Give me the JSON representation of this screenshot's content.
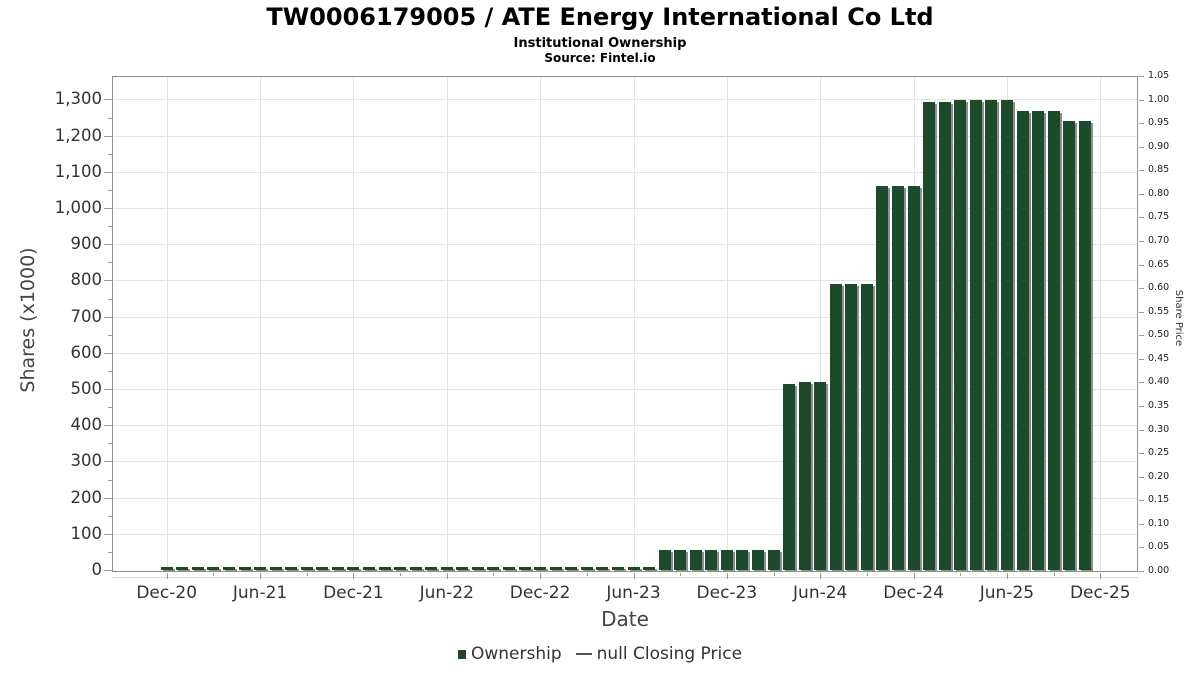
{
  "title": "TW0006179005 / ATE Energy International Co Ltd",
  "subtitle": "Institutional Ownership",
  "source": "Source: Fintel.io",
  "axes": {
    "x_label": "Date",
    "y_label": "Shares (x1000)",
    "y2_label": "Share Price"
  },
  "legend": {
    "items": [
      {
        "label": "Ownership",
        "marker": "square"
      },
      {
        "label": "null Closing Price",
        "marker": "line"
      }
    ]
  },
  "colors": {
    "bar": "#1d4b29",
    "bar_shadow": "#8f8f8f",
    "legend_line": "#555555",
    "grid": "#e4e4e4",
    "plot_border": "#919191",
    "tick": "#999999",
    "text": "#333333"
  },
  "chart_data": {
    "type": "bar",
    "title": "TW0006179005 / ATE Energy International Co Ltd",
    "subtitle": "Institutional Ownership",
    "source": "Source: Fintel.io",
    "xlabel": "Date",
    "ylabel": "Shares (x1000)",
    "y2label": "Share Price",
    "ylim": [
      0,
      1365
    ],
    "y2lim": [
      0,
      1.05
    ],
    "grid": true,
    "legend_position": "bottom",
    "x_tick_labels": [
      "Dec-20",
      "Jun-21",
      "Dec-21",
      "Jun-22",
      "Dec-22",
      "Jun-23",
      "Dec-23",
      "Jun-24",
      "Dec-24",
      "Jun-25",
      "Dec-25"
    ],
    "y_tick_labels": [
      "0",
      "100",
      "200",
      "300",
      "400",
      "500",
      "600",
      "700",
      "800",
      "900",
      "1,000",
      "1,100",
      "1,200",
      "1,300"
    ],
    "y2_tick_labels": [
      "0.00",
      "0.05",
      "0.10",
      "0.15",
      "0.20",
      "0.25",
      "0.30",
      "0.35",
      "0.40",
      "0.45",
      "0.50",
      "0.55",
      "0.60",
      "0.65",
      "0.70",
      "0.75",
      "0.80",
      "0.85",
      "0.90",
      "0.95",
      "1.00",
      "1.05"
    ],
    "categories": [
      "Dec-20",
      "Jan-21",
      "Feb-21",
      "Mar-21",
      "Apr-21",
      "May-21",
      "Jun-21",
      "Jul-21",
      "Aug-21",
      "Sep-21",
      "Oct-21",
      "Nov-21",
      "Dec-21",
      "Jan-22",
      "Feb-22",
      "Mar-22",
      "Apr-22",
      "May-22",
      "Jun-22",
      "Jul-22",
      "Aug-22",
      "Sep-22",
      "Oct-22",
      "Nov-22",
      "Dec-22",
      "Jan-23",
      "Feb-23",
      "Mar-23",
      "Apr-23",
      "May-23",
      "Jun-23",
      "Jul-23",
      "Aug-23",
      "Sep-23",
      "Oct-23",
      "Nov-23",
      "Dec-23",
      "Jan-24",
      "Feb-24",
      "Mar-24",
      "Apr-24",
      "May-24",
      "Jun-24",
      "Jul-24",
      "Aug-24",
      "Sep-24",
      "Oct-24",
      "Nov-24",
      "Dec-24",
      "Jan-25",
      "Feb-25",
      "Mar-25",
      "Apr-25",
      "May-25",
      "Jun-25",
      "Jul-25",
      "Aug-25",
      "Sep-25",
      "Oct-25",
      "Nov-25"
    ],
    "series": [
      {
        "name": "Ownership",
        "type": "bar",
        "values": [
          8,
          8,
          8,
          8,
          8,
          8,
          8,
          8,
          8,
          8,
          8,
          8,
          8,
          8,
          8,
          8,
          8,
          8,
          8,
          8,
          8,
          8,
          8,
          8,
          8,
          8,
          8,
          8,
          8,
          8,
          8,
          8,
          55,
          55,
          55,
          55,
          55,
          55,
          55,
          55,
          515,
          520,
          518,
          790,
          790,
          790,
          1060,
          1060,
          1060,
          1292,
          1292,
          1297,
          1297,
          1298,
          1297,
          1267,
          1267,
          1268,
          1240,
          1240
        ]
      },
      {
        "name": "null Closing Price",
        "type": "line",
        "values": []
      }
    ]
  }
}
